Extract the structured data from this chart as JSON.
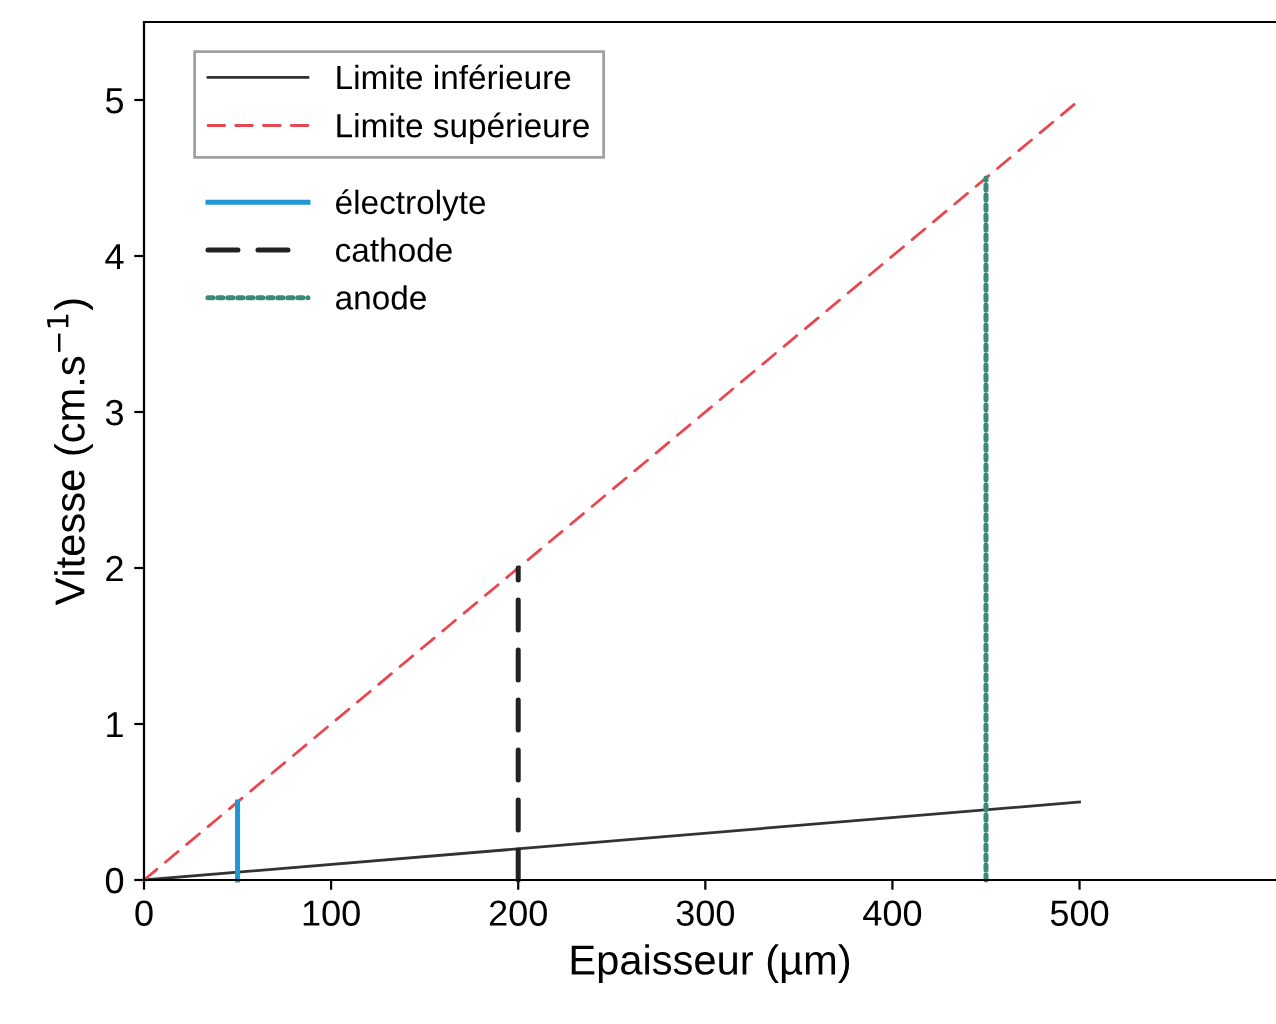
{
  "chart_data": {
    "type": "line",
    "xlabel": "Epaisseur (µm)",
    "ylabel": "Vitesse (cm.s$^{−1}$)",
    "xlim": [
      0,
      605
    ],
    "ylim": [
      0,
      5.5
    ],
    "xticks": [
      0,
      100,
      200,
      300,
      400,
      500
    ],
    "yticks": [
      0,
      1,
      2,
      3,
      4,
      5
    ],
    "grid": false,
    "legend": "top left",
    "marker": "none",
    "series": [
      {
        "name": "Limite inférieure",
        "color": "#333333",
        "line_style": "solid",
        "x": [
          0,
          500
        ],
        "values": [
          0,
          0.5
        ]
      },
      {
        "name": "Limite supérieure",
        "color": "#e8474f",
        "line_style": "dashed",
        "x": [
          0,
          500
        ],
        "values": [
          0,
          5
        ]
      },
      {
        "name": "électrolyte",
        "color": "#1f96d6",
        "line_style": "solid",
        "x": [
          50,
          50
        ],
        "values": [
          0,
          0.5
        ]
      },
      {
        "name": "cathode",
        "color": "#222222",
        "line_style": "dashed",
        "x": [
          200,
          200
        ],
        "values": [
          0,
          2
        ]
      },
      {
        "name": "anode",
        "color": "#3a8a7a",
        "line_style": "dotted",
        "x": [
          450,
          450
        ],
        "values": [
          0,
          4.5
        ]
      }
    ]
  }
}
